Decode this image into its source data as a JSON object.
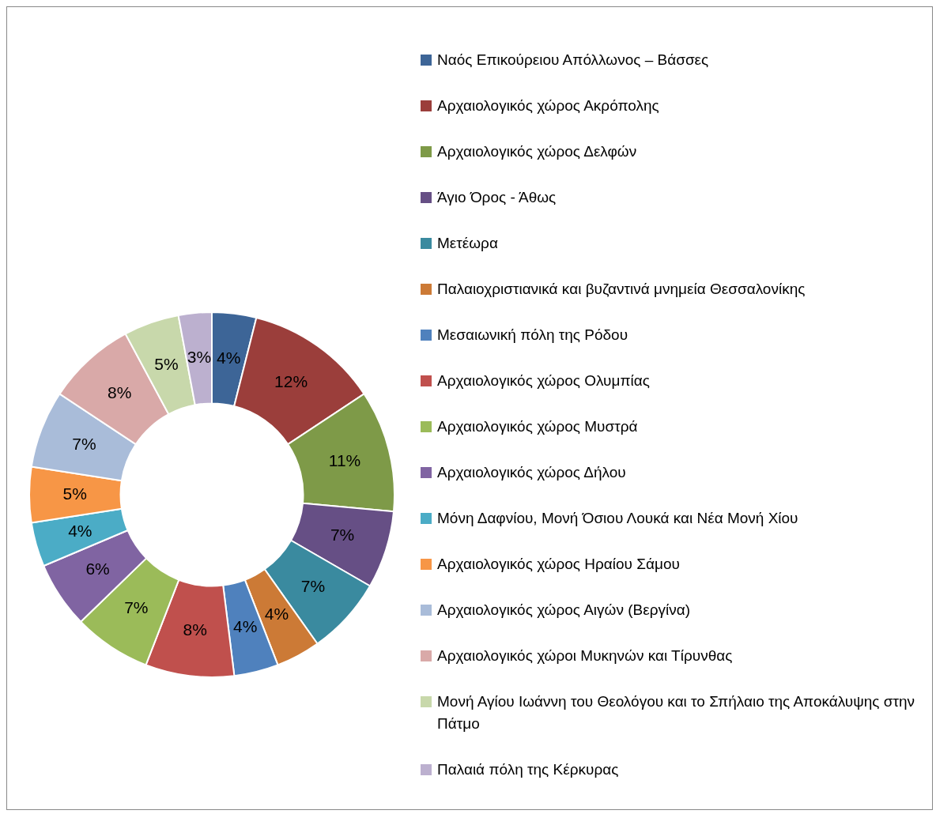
{
  "chart_data": {
    "type": "donut",
    "legend": "right",
    "categories": [
      "Ναός Επικούρειου Απόλλωνος – Βάσσες",
      "Αρχαιολογικός χώρος Ακρόπολης",
      "Αρχαιολογικός χώρος Δελφών",
      "Άγιο Όρος - Άθως",
      "Μετέωρα",
      "Παλαιοχριστιανικά και βυζαντινά μνημεία Θεσσαλονίκης",
      "Μεσαιωνική πόλη της Ρόδου",
      "Αρχαιολογικός χώρος Ολυμπίας",
      "Αρχαιολογικός χώρος Μυστρά",
      "Αρχαιολογικός χώρος Δήλου",
      "Μόνη Δαφνίου, Μονή Όσιου Λουκά και Νέα Μονή Χίου",
      "Αρχαιολογικός χώρος Ηραίου Σάμου",
      "Αρχαιολογικός χώρος Αιγών (Βεργίνα)",
      "Αρχαιολογικός χώροι Μυκηνών και Τίρυνθας",
      "Μονή Αγίου Ιωάννη του Θεολόγου και το Σπήλαιο της Αποκάλυψης στην Πάτμο",
      "Παλαιά πόλη της Κέρκυρας"
    ],
    "values": [
      4,
      12,
      11,
      7,
      7,
      4,
      4,
      8,
      7,
      6,
      4,
      5,
      7,
      8,
      5,
      3
    ],
    "value_labels": [
      "4%",
      "12%",
      "11%",
      "7%",
      "7%",
      "4%",
      "4%",
      "8%",
      "7%",
      "6%",
      "4%",
      "5%",
      "7%",
      "8%",
      "5%",
      "3%"
    ],
    "colors": [
      "#3d6597",
      "#9b3e3b",
      "#7e9a48",
      "#664f85",
      "#3a8a9f",
      "#cc7a36",
      "#4f81bd",
      "#c0504d",
      "#9bbb59",
      "#8064a2",
      "#4bacc6",
      "#f79646",
      "#a9bcd9",
      "#d9a9a8",
      "#c8d8ab",
      "#bcb0cf"
    ]
  }
}
